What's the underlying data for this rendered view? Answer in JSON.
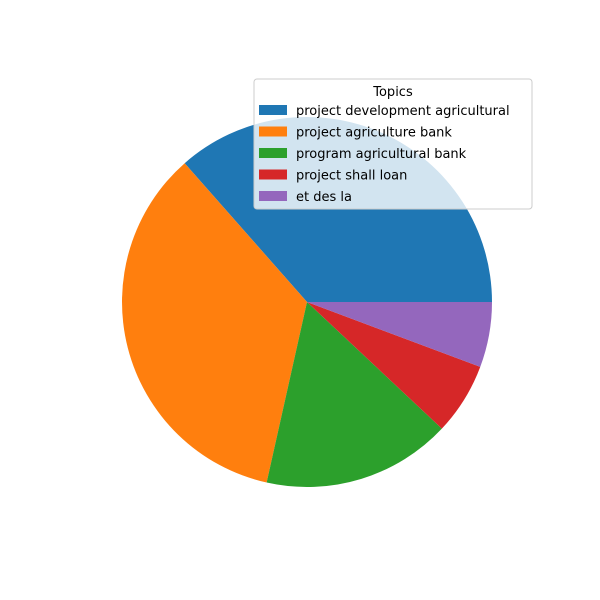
{
  "chart_data": {
    "type": "pie",
    "categories": [
      "project development agricultural",
      "project agriculture bank",
      "program agricultural bank",
      "project shall loan",
      "et des la"
    ],
    "values": [
      36.5,
      35.0,
      16.5,
      6.3,
      5.7
    ],
    "colors": [
      "#1f77b4",
      "#ff7f0e",
      "#2ca02c",
      "#d62728",
      "#9467bd"
    ],
    "start_angle_deg": 0,
    "direction": "counterclockwise",
    "legend": {
      "title": "Topics",
      "placement": "upper-right"
    }
  }
}
